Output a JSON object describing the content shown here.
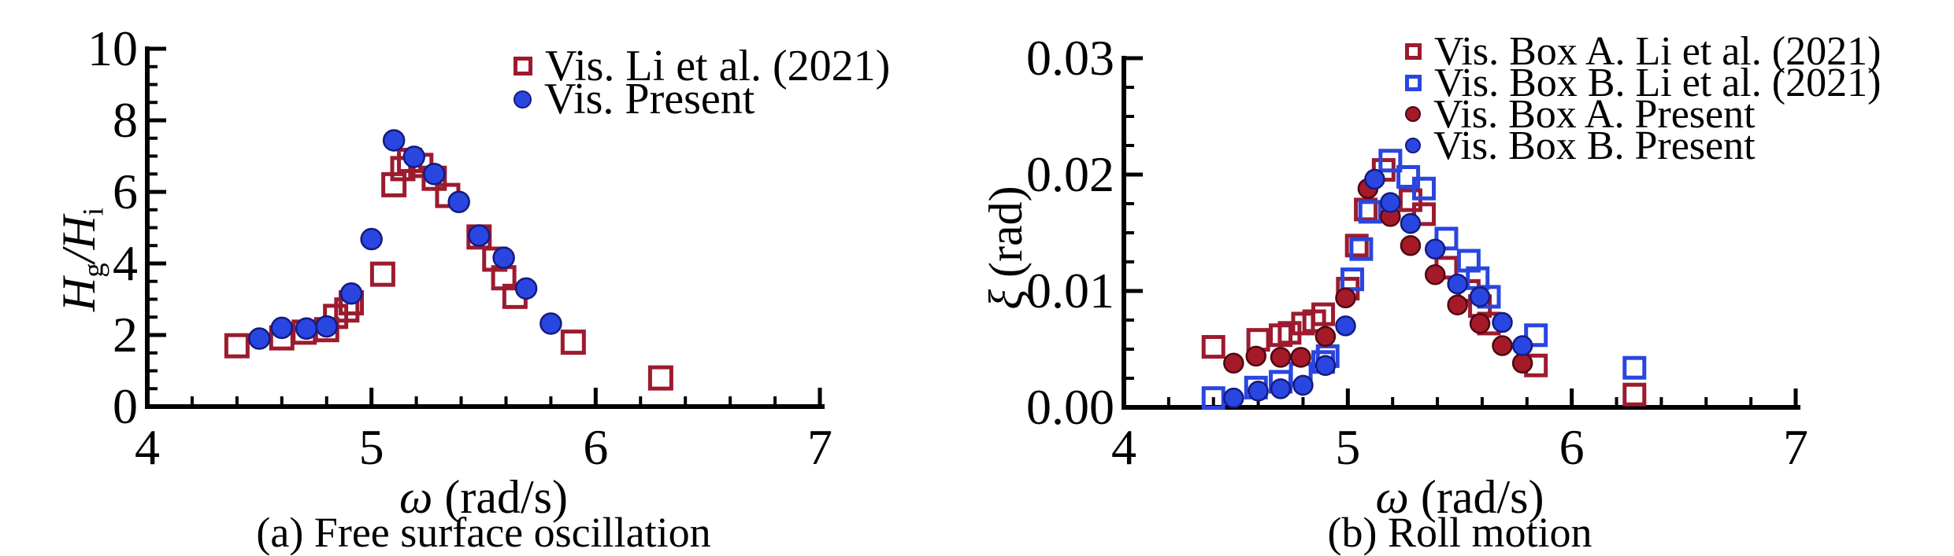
{
  "figure": {
    "background": "#ffffff",
    "text_color": "#000000",
    "accent_red": "#9c1b2e",
    "accent_blue": "#2a46e0",
    "panels": [
      {
        "caption": "(a) Free surface oscillation",
        "xlabel_parts": [
          {
            "text": "ω",
            "italic": true
          },
          {
            "text": " (rad/s)",
            "italic": false
          }
        ],
        "ylabel_parts": [
          {
            "text": "H",
            "italic": true,
            "sub": "g"
          },
          {
            "text": "/",
            "italic": true
          },
          {
            "text": "H",
            "italic": true,
            "sub": "i"
          }
        ]
      },
      {
        "caption": "(b) Roll motion",
        "xlabel_parts": [
          {
            "text": "ω",
            "italic": true
          },
          {
            "text": " (rad/s)",
            "italic": false
          }
        ],
        "ylabel_parts": [
          {
            "text": "ξ",
            "italic": true
          },
          {
            "text": " (rad)",
            "italic": false
          }
        ]
      }
    ]
  },
  "chart_data": [
    {
      "type": "scatter",
      "title": "(a) Free surface oscillation",
      "xlabel": "ω (rad/s)",
      "ylabel": "Hg/Hi",
      "xlim": [
        4,
        7
      ],
      "ylim": [
        0,
        10
      ],
      "grid": false,
      "legend_position": "top-right-inside",
      "x_ticks": [
        {
          "v": 4,
          "label": "4"
        },
        {
          "v": 5,
          "label": "5"
        },
        {
          "v": 6,
          "label": "6"
        },
        {
          "v": 7,
          "label": "7"
        }
      ],
      "y_ticks": [
        {
          "v": 0,
          "label": "0"
        },
        {
          "v": 2,
          "label": "2"
        },
        {
          "v": 4,
          "label": "4"
        },
        {
          "v": 6,
          "label": "6"
        },
        {
          "v": 8,
          "label": "8"
        },
        {
          "v": 10,
          "label": "10"
        }
      ],
      "x_minor_step": 0.2,
      "y_minor_step": 0.5,
      "series": [
        {
          "name": "Vis. Li et al. (2021)",
          "marker": "square-open",
          "color": "#9c1b2e",
          "points": [
            [
              4.4,
              1.7
            ],
            [
              4.6,
              1.92
            ],
            [
              4.7,
              2.08
            ],
            [
              4.8,
              2.15
            ],
            [
              4.84,
              2.52
            ],
            [
              4.89,
              2.7
            ],
            [
              4.91,
              2.9
            ],
            [
              5.05,
              3.7
            ],
            [
              5.1,
              6.2
            ],
            [
              5.14,
              6.65
            ],
            [
              5.17,
              6.88
            ],
            [
              5.22,
              6.74
            ],
            [
              5.28,
              6.38
            ],
            [
              5.34,
              5.9
            ],
            [
              5.48,
              4.74
            ],
            [
              5.55,
              4.12
            ],
            [
              5.59,
              3.6
            ],
            [
              5.64,
              3.08
            ],
            [
              5.9,
              1.8
            ],
            [
              6.29,
              0.8
            ]
          ]
        },
        {
          "name": "Vis. Present",
          "marker": "circle",
          "color": "#2a46e0",
          "points": [
            [
              4.5,
              1.9
            ],
            [
              4.6,
              2.2
            ],
            [
              4.71,
              2.18
            ],
            [
              4.8,
              2.24
            ],
            [
              4.91,
              3.16
            ],
            [
              5.0,
              4.68
            ],
            [
              5.1,
              7.44
            ],
            [
              5.19,
              6.98
            ],
            [
              5.28,
              6.5
            ],
            [
              5.39,
              5.72
            ],
            [
              5.48,
              4.78
            ],
            [
              5.59,
              4.16
            ],
            [
              5.69,
              3.3
            ],
            [
              5.8,
              2.32
            ]
          ]
        }
      ]
    },
    {
      "type": "scatter",
      "title": "(b) Roll motion",
      "xlabel": "ω (rad/s)",
      "ylabel": "ξ (rad)",
      "xlim": [
        4,
        7
      ],
      "ylim": [
        0,
        0.03
      ],
      "grid": false,
      "legend_position": "top-right-inside",
      "x_ticks": [
        {
          "v": 4,
          "label": "4"
        },
        {
          "v": 5,
          "label": "5"
        },
        {
          "v": 6,
          "label": "6"
        },
        {
          "v": 7,
          "label": "7"
        }
      ],
      "y_ticks": [
        {
          "v": 0,
          "label": "0.00"
        },
        {
          "v": 0.01,
          "label": "0.01"
        },
        {
          "v": 0.02,
          "label": "0.02"
        },
        {
          "v": 0.03,
          "label": "0.03"
        }
      ],
      "x_minor_step": 0.2,
      "y_minor_step": 0.0025,
      "series": [
        {
          "name": "Vis. Box A. Li et al. (2021)",
          "marker": "square-open",
          "color": "#9c1b2e",
          "points": [
            [
              4.4,
              0.0052
            ],
            [
              4.6,
              0.0058
            ],
            [
              4.7,
              0.0062
            ],
            [
              4.74,
              0.0064
            ],
            [
              4.8,
              0.0072
            ],
            [
              4.85,
              0.0074
            ],
            [
              4.89,
              0.008
            ],
            [
              5.0,
              0.0102
            ],
            [
              5.04,
              0.0139
            ],
            [
              5.08,
              0.017
            ],
            [
              5.16,
              0.0204
            ],
            [
              5.28,
              0.0178
            ],
            [
              5.34,
              0.0166
            ],
            [
              5.44,
              0.012
            ],
            [
              5.54,
              0.01
            ],
            [
              5.59,
              0.0087
            ],
            [
              5.63,
              0.0072
            ],
            [
              5.84,
              0.0036
            ],
            [
              6.28,
              0.0011
            ]
          ]
        },
        {
          "name": "Vis. Box B. Li et al. (2021)",
          "marker": "square-open",
          "color": "#2a46e0",
          "points": [
            [
              4.4,
              0.0008
            ],
            [
              4.59,
              0.0017
            ],
            [
              4.7,
              0.0022
            ],
            [
              4.79,
              0.0029
            ],
            [
              4.89,
              0.0039
            ],
            [
              4.91,
              0.0044
            ],
            [
              5.02,
              0.011
            ],
            [
              5.06,
              0.0136
            ],
            [
              5.1,
              0.0168
            ],
            [
              5.19,
              0.0212
            ],
            [
              5.27,
              0.0198
            ],
            [
              5.34,
              0.0188
            ],
            [
              5.44,
              0.0145
            ],
            [
              5.54,
              0.0126
            ],
            [
              5.58,
              0.0111
            ],
            [
              5.63,
              0.0095
            ],
            [
              5.84,
              0.0062
            ],
            [
              6.28,
              0.0034
            ]
          ]
        },
        {
          "name": "Vis. Box A. Present",
          "marker": "circle",
          "color": "#a51a28",
          "points": [
            [
              4.49,
              0.0038
            ],
            [
              4.59,
              0.0044
            ],
            [
              4.7,
              0.0043
            ],
            [
              4.79,
              0.0043
            ],
            [
              4.9,
              0.0061
            ],
            [
              4.99,
              0.0094
            ],
            [
              5.09,
              0.0188
            ],
            [
              5.19,
              0.0164
            ],
            [
              5.28,
              0.0139
            ],
            [
              5.39,
              0.0114
            ],
            [
              5.49,
              0.0088
            ],
            [
              5.59,
              0.0072
            ],
            [
              5.69,
              0.0053
            ],
            [
              5.78,
              0.0038
            ]
          ]
        },
        {
          "name": "Vis. Box B. Present",
          "marker": "circle",
          "color": "#2a46e0",
          "points": [
            [
              4.49,
              0.0008
            ],
            [
              4.6,
              0.0014
            ],
            [
              4.7,
              0.0016
            ],
            [
              4.8,
              0.0019
            ],
            [
              4.9,
              0.0036
            ],
            [
              4.99,
              0.007
            ],
            [
              5.12,
              0.0196
            ],
            [
              5.19,
              0.0176
            ],
            [
              5.28,
              0.0158
            ],
            [
              5.39,
              0.0136
            ],
            [
              5.49,
              0.0106
            ],
            [
              5.59,
              0.0095
            ],
            [
              5.69,
              0.0073
            ],
            [
              5.78,
              0.0053
            ]
          ]
        }
      ]
    }
  ]
}
